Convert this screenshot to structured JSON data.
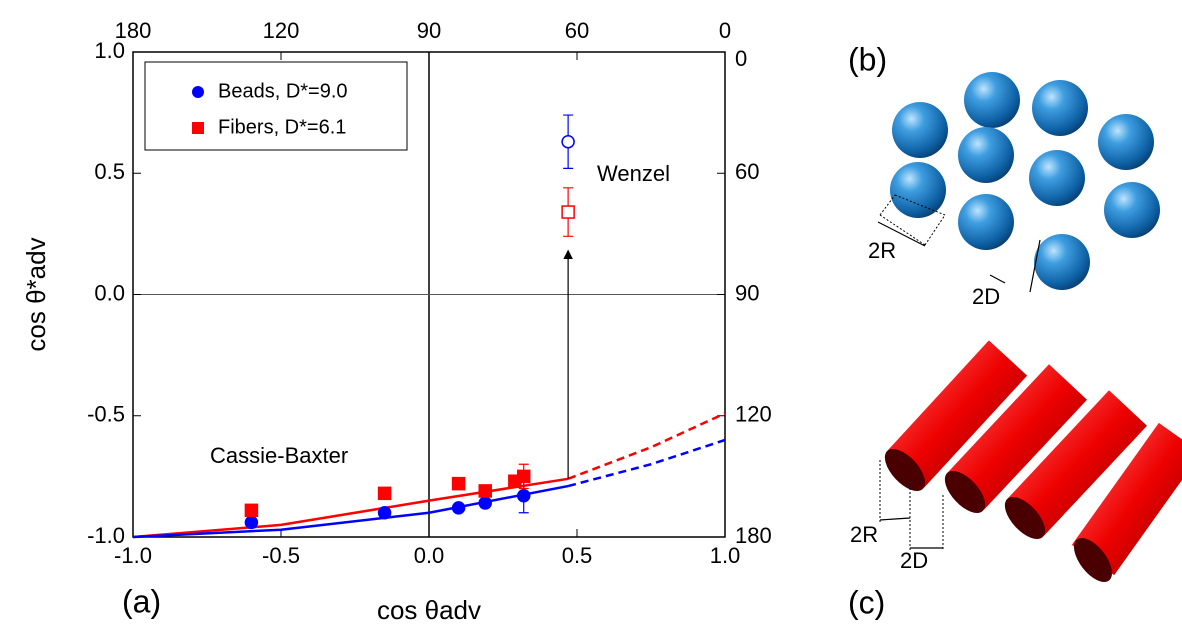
{
  "chart_data": {
    "type": "scatter",
    "x_label": "cos θadv",
    "y_label": "cos θ*adv",
    "xlim": [
      -1,
      1
    ],
    "ylim": [
      -1,
      1
    ],
    "xticks": [
      {
        "value": -1,
        "label": "-1.0"
      },
      {
        "value": -0.5,
        "label": "-0.5"
      },
      {
        "value": 0,
        "label": "0.0"
      },
      {
        "value": 0.5,
        "label": "0.5"
      },
      {
        "value": 1,
        "label": "1.0"
      }
    ],
    "yticks": [
      {
        "value": -1,
        "label": "-1.0"
      },
      {
        "value": -0.5,
        "label": "-0.5"
      },
      {
        "value": 0,
        "label": "0.0"
      },
      {
        "value": 0.5,
        "label": "0.5"
      },
      {
        "value": 1,
        "label": "1.0"
      }
    ],
    "x2ticks": [
      180,
      120,
      90,
      60,
      0
    ],
    "y2ticks": [
      0,
      60,
      90,
      120,
      180
    ],
    "series": [
      {
        "name": "Beads, D*=9.0",
        "color": "#0000ff",
        "marker": "circle",
        "x": [
          -0.6,
          -0.15,
          0.1,
          0.19,
          0.32
        ],
        "values": [
          -0.94,
          -0.9,
          -0.88,
          -0.86,
          -0.83
        ],
        "errors": [
          null,
          null,
          null,
          null,
          0.07
        ]
      },
      {
        "name": "Fibers, D*=6.1",
        "color": "#ff0000",
        "marker": "square",
        "x": [
          -0.6,
          -0.15,
          0.1,
          0.19,
          0.29,
          0.32
        ],
        "values": [
          -0.89,
          -0.82,
          -0.78,
          -0.81,
          -0.77,
          -0.75
        ],
        "errors": [
          null,
          null,
          null,
          null,
          null,
          0.05
        ]
      }
    ],
    "wenzel_points": [
      {
        "color": "#0000ff",
        "marker": "circle",
        "x": 0.47,
        "value": 0.63,
        "error": 0.11
      },
      {
        "color": "#ff0000",
        "marker": "square",
        "x": 0.47,
        "value": 0.34,
        "error": 0.1
      }
    ],
    "curves": [
      {
        "color": "#ff0000",
        "style": "solid",
        "x": [
          -1,
          -0.5,
          0,
          0.47
        ],
        "values": [
          -1,
          -0.95,
          -0.85,
          -0.76
        ]
      },
      {
        "color": "#ff0000",
        "style": "dashed",
        "x": [
          0.47,
          0.75,
          1
        ],
        "values": [
          -0.76,
          -0.63,
          -0.49
        ]
      },
      {
        "color": "#0000ff",
        "style": "solid",
        "x": [
          -1,
          -0.5,
          0,
          0.47
        ],
        "values": [
          -1,
          -0.97,
          -0.9,
          -0.79
        ]
      },
      {
        "color": "#0000ff",
        "style": "dashed",
        "x": [
          0.47,
          0.75,
          1
        ],
        "values": [
          -0.79,
          -0.7,
          -0.6
        ]
      }
    ],
    "annotations": {
      "wenzel": "Wenzel",
      "cassie": "Cassie-Baxter",
      "panel": "(a)"
    }
  },
  "diagram_b": {
    "label": "(b)",
    "radius_label": "2R",
    "distance_label": "2D"
  },
  "diagram_c": {
    "label": "(c)",
    "radius_label": "2R",
    "distance_label": "2D"
  }
}
